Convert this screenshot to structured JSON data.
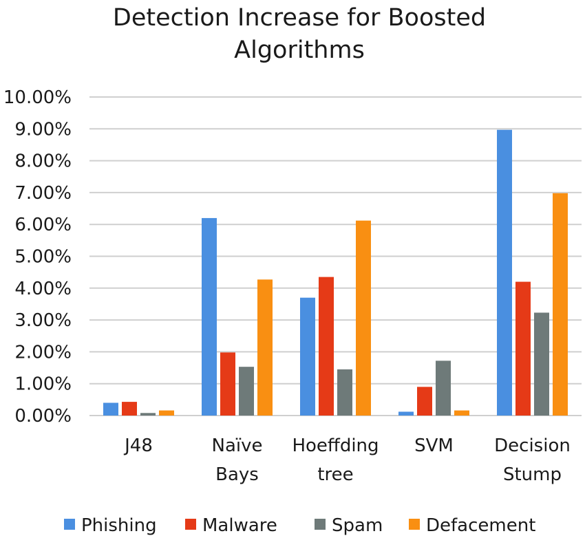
{
  "chart_data": {
    "type": "bar",
    "title_lines": [
      "Detection Increase for Boosted",
      "Algorithms"
    ],
    "categories": [
      [
        "J48"
      ],
      [
        "Naïve",
        "Bays"
      ],
      [
        "Hoeffding",
        "tree"
      ],
      [
        "SVM"
      ],
      [
        "Decision",
        "Stump"
      ]
    ],
    "series": [
      {
        "name": "Phishing",
        "color": "#4a8fe0",
        "values": [
          0.4,
          6.2,
          3.7,
          0.12,
          8.97
        ]
      },
      {
        "name": "Malware",
        "color": "#e53a17",
        "values": [
          0.43,
          1.98,
          4.35,
          0.9,
          4.2
        ]
      },
      {
        "name": "Spam",
        "color": "#6e7a79",
        "values": [
          0.08,
          1.53,
          1.45,
          1.72,
          3.23
        ]
      },
      {
        "name": "Defacement",
        "color": "#f98f12",
        "values": [
          0.16,
          4.27,
          6.12,
          0.16,
          6.98
        ]
      }
    ],
    "yticks": [
      "0.00%",
      "1.00%",
      "2.00%",
      "3.00%",
      "4.00%",
      "5.00%",
      "6.00%",
      "7.00%",
      "8.00%",
      "9.00%",
      "10.00%"
    ],
    "ylim": [
      0,
      10
    ],
    "grid": true,
    "legend_position": "bottom"
  }
}
